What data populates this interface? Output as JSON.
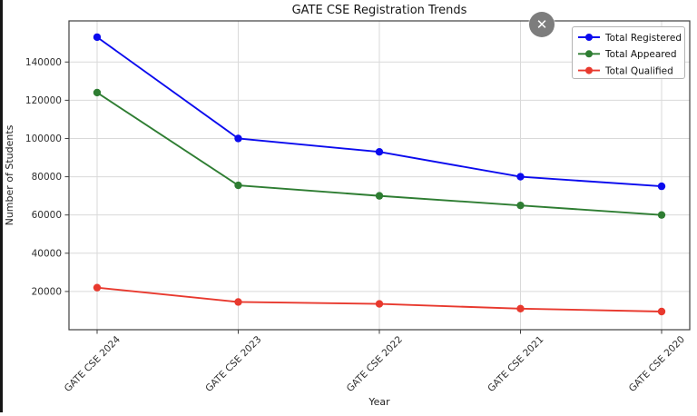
{
  "overlay": {
    "close_icon": "✕"
  },
  "chart_data": {
    "type": "line",
    "title": "GATE CSE Registration Trends",
    "xlabel": "Year",
    "ylabel": "Number of Students",
    "categories": [
      "GATE CSE 2024",
      "GATE CSE 2023",
      "GATE CSE 2022",
      "GATE CSE 2021",
      "GATE CSE 2020"
    ],
    "series": [
      {
        "name": "Total Registered",
        "color": "#0b0bee",
        "values": [
          153000,
          100000,
          93000,
          80000,
          75000
        ]
      },
      {
        "name": "Total Appeared",
        "color": "#2e7d32",
        "values": [
          124000,
          75500,
          70000,
          65000,
          60000
        ]
      },
      {
        "name": "Total Qualified",
        "color": "#e8392e",
        "values": [
          22000,
          14500,
          13500,
          11000,
          9500
        ]
      }
    ],
    "ylim": [
      0,
      161500
    ],
    "yticks": [
      20000,
      40000,
      60000,
      80000,
      100000,
      120000,
      140000
    ],
    "grid": true,
    "grid_color": "#d9d9d9",
    "spine_color": "#3f3f3f",
    "legend_position": "upper right",
    "marker": "o"
  }
}
